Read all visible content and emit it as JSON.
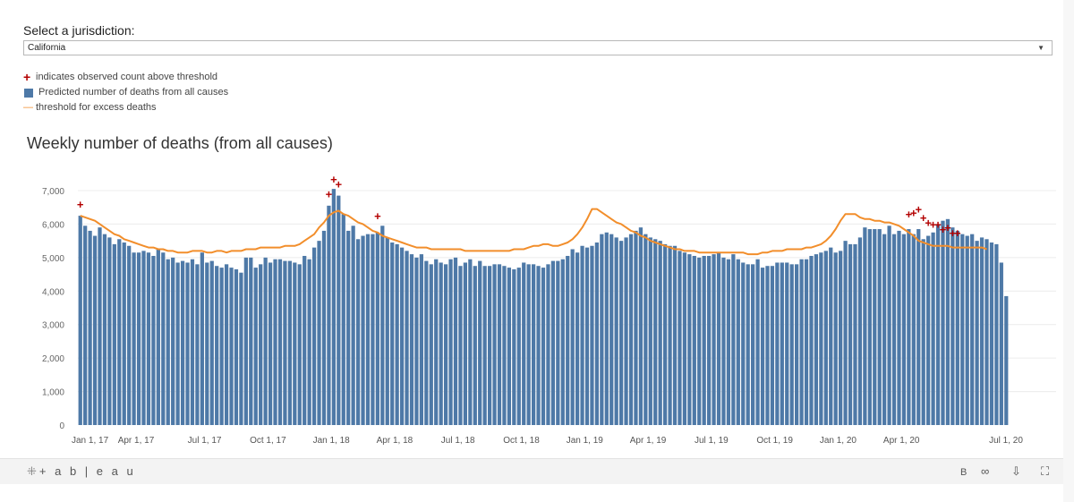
{
  "jurisdiction": {
    "label": "Select a jurisdiction:",
    "selected": "California"
  },
  "legend": {
    "plus_symbol": "+",
    "plus_text": "indicates observed count above threshold",
    "bar_text": "Predicted number of deaths from all causes",
    "line_symbol": "—",
    "line_text": "threshold for excess deaths"
  },
  "footer": {
    "logo": "+ a b | e a u",
    "logo_mark": "⁜",
    "icon_b": "B",
    "icon_share": "∞",
    "icon_download": "⇩",
    "icon_fullscreen": "⛶"
  },
  "colors": {
    "bar": "#4e79a7",
    "threshold": "#f28e2b",
    "plus": "#b30000",
    "grid": "#ececec"
  },
  "chart_data": {
    "type": "bar",
    "title": "Weekly number of deaths (from all causes)",
    "xlabel": "",
    "ylabel": "",
    "ylim": [
      0,
      7000
    ],
    "yticks": [
      0,
      1000,
      2000,
      3000,
      4000,
      5000,
      6000,
      7000
    ],
    "ytick_labels": [
      "0",
      "1,000",
      "2,000",
      "3,000",
      "4,000",
      "5,000",
      "6,000",
      "7,000"
    ],
    "xtick_labels": [
      "Jan 1, 17",
      "Apr 1, 17",
      "Jul 1, 17",
      "Oct 1, 17",
      "Jan 1, 18",
      "Apr 1, 18",
      "Jul 1, 18",
      "Oct 1, 18",
      "Jan 1, 19",
      "Apr 1, 19",
      "Jul 1, 19",
      "Oct 1, 19",
      "Jan 1, 20",
      "Apr 1, 20",
      "Jul 1, 20"
    ],
    "xtick_weeks": [
      0,
      13,
      26,
      39,
      52,
      65,
      78,
      91,
      104,
      117,
      130,
      143,
      156,
      169,
      182
    ],
    "weeks_start": "Jan 1, 17",
    "series": [
      {
        "name": "Predicted number of deaths from all causes",
        "type": "bar",
        "values": [
          6250,
          5950,
          5800,
          5650,
          5900,
          5700,
          5600,
          5400,
          5550,
          5450,
          5350,
          5150,
          5150,
          5200,
          5150,
          5050,
          5250,
          5150,
          4950,
          5000,
          4850,
          4900,
          4850,
          4950,
          4800,
          5150,
          4850,
          4900,
          4750,
          4700,
          4800,
          4700,
          4650,
          4550,
          5000,
          5000,
          4700,
          4800,
          5000,
          4850,
          4950,
          4950,
          4900,
          4900,
          4850,
          4800,
          5050,
          4950,
          5300,
          5500,
          5800,
          6550,
          7050,
          6850,
          6300,
          5800,
          5950,
          5550,
          5650,
          5700,
          5700,
          5750,
          5950,
          5600,
          5450,
          5400,
          5300,
          5200,
          5100,
          5000,
          5100,
          4900,
          4800,
          4950,
          4850,
          4800,
          4950,
          5000,
          4750,
          4850,
          4950,
          4750,
          4900,
          4750,
          4750,
          4800,
          4800,
          4750,
          4700,
          4650,
          4700,
          4850,
          4800,
          4800,
          4750,
          4700,
          4800,
          4900,
          4900,
          4950,
          5050,
          5250,
          5150,
          5350,
          5300,
          5350,
          5450,
          5700,
          5750,
          5700,
          5600,
          5500,
          5600,
          5700,
          5800,
          5900,
          5700,
          5600,
          5550,
          5500,
          5400,
          5350,
          5350,
          5200,
          5150,
          5100,
          5050,
          5000,
          5050,
          5050,
          5100,
          5150,
          5000,
          4950,
          5100,
          4950,
          4850,
          4800,
          4800,
          4950,
          4700,
          4750,
          4750,
          4850,
          4850,
          4850,
          4800,
          4800,
          4950,
          4950,
          5050,
          5100,
          5150,
          5200,
          5300,
          5150,
          5200,
          5500,
          5400,
          5400,
          5600,
          5900,
          5850,
          5850,
          5850,
          5700,
          5950,
          5700,
          5800,
          5700,
          5850,
          5700,
          5850,
          5550,
          5650,
          5750,
          6000,
          6100,
          6150,
          5900,
          5800,
          5700,
          5650,
          5700,
          5500,
          5600,
          5550,
          5450,
          5400,
          4850,
          3850
        ]
      },
      {
        "name": "threshold for excess deaths",
        "type": "line",
        "values": [
          6250,
          6200,
          6150,
          6100,
          6000,
          5900,
          5800,
          5700,
          5650,
          5550,
          5500,
          5450,
          5400,
          5350,
          5300,
          5300,
          5250,
          5250,
          5200,
          5200,
          5150,
          5150,
          5150,
          5200,
          5200,
          5200,
          5150,
          5150,
          5200,
          5200,
          5150,
          5200,
          5200,
          5200,
          5250,
          5250,
          5250,
          5300,
          5300,
          5300,
          5300,
          5300,
          5350,
          5350,
          5350,
          5400,
          5500,
          5600,
          5700,
          5900,
          6050,
          6250,
          6350,
          6400,
          6300,
          6250,
          6150,
          6050,
          6000,
          5900,
          5800,
          5750,
          5650,
          5600,
          5550,
          5500,
          5450,
          5400,
          5350,
          5300,
          5300,
          5300,
          5250,
          5250,
          5250,
          5250,
          5250,
          5250,
          5250,
          5200,
          5200,
          5200,
          5200,
          5200,
          5200,
          5200,
          5200,
          5200,
          5200,
          5250,
          5250,
          5250,
          5300,
          5350,
          5350,
          5400,
          5400,
          5350,
          5350,
          5400,
          5450,
          5550,
          5700,
          5900,
          6150,
          6450,
          6450,
          6350,
          6250,
          6150,
          6050,
          6000,
          5900,
          5800,
          5750,
          5650,
          5600,
          5500,
          5450,
          5400,
          5350,
          5300,
          5250,
          5250,
          5200,
          5200,
          5200,
          5150,
          5150,
          5150,
          5150,
          5150,
          5150,
          5150,
          5150,
          5150,
          5150,
          5100,
          5100,
          5100,
          5150,
          5150,
          5200,
          5200,
          5200,
          5250,
          5250,
          5250,
          5250,
          5300,
          5300,
          5350,
          5400,
          5500,
          5650,
          5850,
          6100,
          6300,
          6300,
          6300,
          6200,
          6150,
          6150,
          6100,
          6100,
          6050,
          6050,
          6000,
          5950,
          5850,
          5750,
          5650,
          5500,
          5450,
          5400,
          5350,
          5350,
          5350,
          5350,
          5300,
          5300,
          5300,
          5300,
          5300,
          5300,
          5300,
          5250
        ]
      }
    ],
    "above_threshold_markers": [
      {
        "week": 0,
        "value": 6600
      },
      {
        "week": 51,
        "value": 6900
      },
      {
        "week": 52,
        "value": 7350
      },
      {
        "week": 53,
        "value": 7200
      },
      {
        "week": 61,
        "value": 6250
      },
      {
        "week": 170,
        "value": 6300
      },
      {
        "week": 171,
        "value": 6350
      },
      {
        "week": 172,
        "value": 6450
      },
      {
        "week": 173,
        "value": 6200
      },
      {
        "week": 174,
        "value": 6050
      },
      {
        "week": 175,
        "value": 6000
      },
      {
        "week": 176,
        "value": 6000
      },
      {
        "week": 177,
        "value": 5850
      },
      {
        "week": 178,
        "value": 5900
      },
      {
        "week": 179,
        "value": 5750
      },
      {
        "week": 180,
        "value": 5750
      }
    ],
    "grid": true,
    "legend_position": "top-left"
  }
}
